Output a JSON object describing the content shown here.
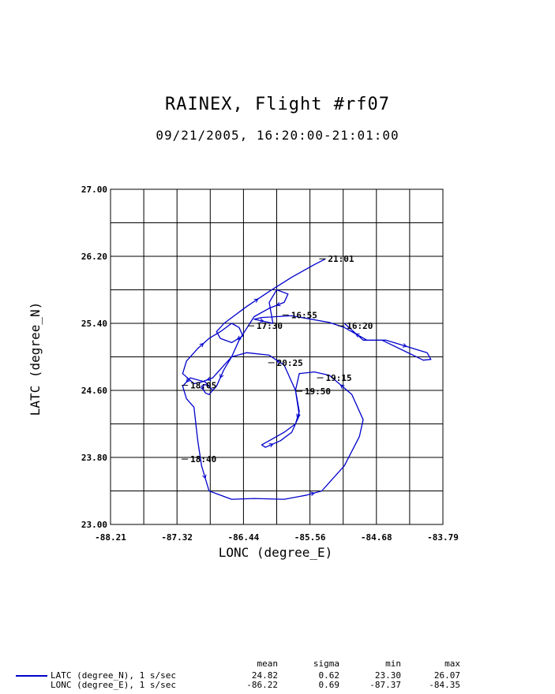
{
  "title": "RAINEX, Flight #rf07",
  "subtitle": "09/21/2005, 16:20:00-21:01:00",
  "chart_data": {
    "type": "line",
    "xlabel": "LONC (degree_E)",
    "ylabel": "LATC (degree_N)",
    "xlim": [
      -88.21,
      -83.79
    ],
    "ylim": [
      23.0,
      27.0
    ],
    "x_tick_labels": [
      "-88.21",
      "-87.32",
      "-86.44",
      "-85.56",
      "-84.68",
      "-83.79"
    ],
    "y_tick_labels": [
      "23.00",
      "23.80",
      "24.60",
      "25.40",
      "26.20",
      "27.00"
    ],
    "grid": true,
    "line_color": "#0000cc",
    "series": [
      {
        "name": "LATC (degree_N), 1 s/sec",
        "points": [
          [
            -85.1,
            25.4
          ],
          [
            -84.85,
            25.2
          ],
          [
            -84.55,
            25.2
          ],
          [
            -84.0,
            25.05
          ],
          [
            -83.95,
            24.97
          ],
          [
            -84.05,
            24.96
          ],
          [
            -84.6,
            25.2
          ],
          [
            -84.8,
            25.2
          ],
          [
            -85.1,
            25.35
          ],
          [
            -85.3,
            25.41
          ],
          [
            -85.8,
            25.49
          ],
          [
            -86.2,
            25.47
          ],
          [
            -86.3,
            25.45
          ],
          [
            -86.05,
            25.4
          ],
          [
            -86.1,
            25.65
          ],
          [
            -86.0,
            25.8
          ],
          [
            -85.85,
            25.75
          ],
          [
            -85.9,
            25.65
          ],
          [
            -86.1,
            25.58
          ],
          [
            -86.3,
            25.48
          ],
          [
            -86.5,
            25.2
          ],
          [
            -86.6,
            25.0
          ],
          [
            -86.7,
            24.85
          ],
          [
            -86.8,
            24.65
          ],
          [
            -86.85,
            24.6
          ],
          [
            -86.9,
            24.65
          ],
          [
            -86.95,
            24.67
          ],
          [
            -87.0,
            24.65
          ],
          [
            -86.95,
            24.57
          ],
          [
            -86.9,
            24.55
          ],
          [
            -86.85,
            24.6
          ],
          [
            -86.95,
            24.7
          ],
          [
            -87.15,
            24.75
          ],
          [
            -87.25,
            24.65
          ],
          [
            -87.2,
            24.5
          ],
          [
            -87.1,
            24.4
          ],
          [
            -87.05,
            24.0
          ],
          [
            -87.0,
            23.7
          ],
          [
            -86.9,
            23.4
          ],
          [
            -86.6,
            23.3
          ],
          [
            -86.3,
            23.31
          ],
          [
            -85.9,
            23.3
          ],
          [
            -85.6,
            23.35
          ],
          [
            -85.4,
            23.4
          ],
          [
            -85.1,
            23.7
          ],
          [
            -84.9,
            24.05
          ],
          [
            -84.85,
            24.25
          ],
          [
            -85.0,
            24.55
          ],
          [
            -85.3,
            24.78
          ],
          [
            -85.5,
            24.82
          ],
          [
            -85.7,
            24.8
          ],
          [
            -85.75,
            24.6
          ],
          [
            -85.7,
            24.35
          ],
          [
            -85.75,
            24.2
          ],
          [
            -85.9,
            24.1
          ],
          [
            -86.1,
            24.0
          ],
          [
            -86.2,
            23.95
          ],
          [
            -86.15,
            23.92
          ],
          [
            -85.95,
            24.0
          ],
          [
            -85.8,
            24.1
          ],
          [
            -85.7,
            24.3
          ],
          [
            -85.75,
            24.6
          ],
          [
            -85.9,
            24.9
          ],
          [
            -86.1,
            25.02
          ],
          [
            -86.4,
            25.05
          ],
          [
            -86.6,
            25.0
          ],
          [
            -86.7,
            24.9
          ],
          [
            -86.85,
            24.75
          ],
          [
            -87.0,
            24.7
          ],
          [
            -87.1,
            24.68
          ],
          [
            -87.25,
            24.8
          ],
          [
            -87.2,
            24.95
          ],
          [
            -87.05,
            25.1
          ],
          [
            -86.9,
            25.22
          ],
          [
            -86.75,
            25.3
          ],
          [
            -86.6,
            25.4
          ],
          [
            -86.5,
            25.35
          ],
          [
            -86.45,
            25.25
          ],
          [
            -86.6,
            25.17
          ],
          [
            -86.75,
            25.22
          ],
          [
            -86.8,
            25.3
          ],
          [
            -86.7,
            25.4
          ],
          [
            -86.4,
            25.6
          ],
          [
            -86.1,
            25.78
          ],
          [
            -85.8,
            25.95
          ],
          [
            -85.5,
            26.1
          ],
          [
            -85.35,
            26.17
          ]
        ]
      }
    ],
    "time_labels": [
      {
        "text": "21:01",
        "lon": -85.35,
        "lat": 26.17
      },
      {
        "text": "16:55",
        "lon": -85.84,
        "lat": 25.5
      },
      {
        "text": "16:20",
        "lon": -85.1,
        "lat": 25.37
      },
      {
        "text": "17:30",
        "lon": -86.3,
        "lat": 25.37
      },
      {
        "text": "20:25",
        "lon": -86.03,
        "lat": 24.93
      },
      {
        "text": "19:15",
        "lon": -85.38,
        "lat": 24.75
      },
      {
        "text": "19:50",
        "lon": -85.66,
        "lat": 24.59
      },
      {
        "text": "18:05",
        "lon": -87.18,
        "lat": 24.66
      },
      {
        "text": "18:40",
        "lon": -87.18,
        "lat": 23.78
      }
    ]
  },
  "legend": {
    "headers": [
      "mean",
      "sigma",
      "min",
      "max"
    ],
    "rows": [
      {
        "label": "LATC (degree_N), 1 s/sec",
        "values": [
          "24.82",
          "0.62",
          "23.30",
          "26.07"
        ]
      },
      {
        "label": "LONC (degree_E), 1 s/sec",
        "values": [
          "-86.22",
          "0.69",
          "-87.37",
          "-84.35"
        ]
      }
    ]
  }
}
